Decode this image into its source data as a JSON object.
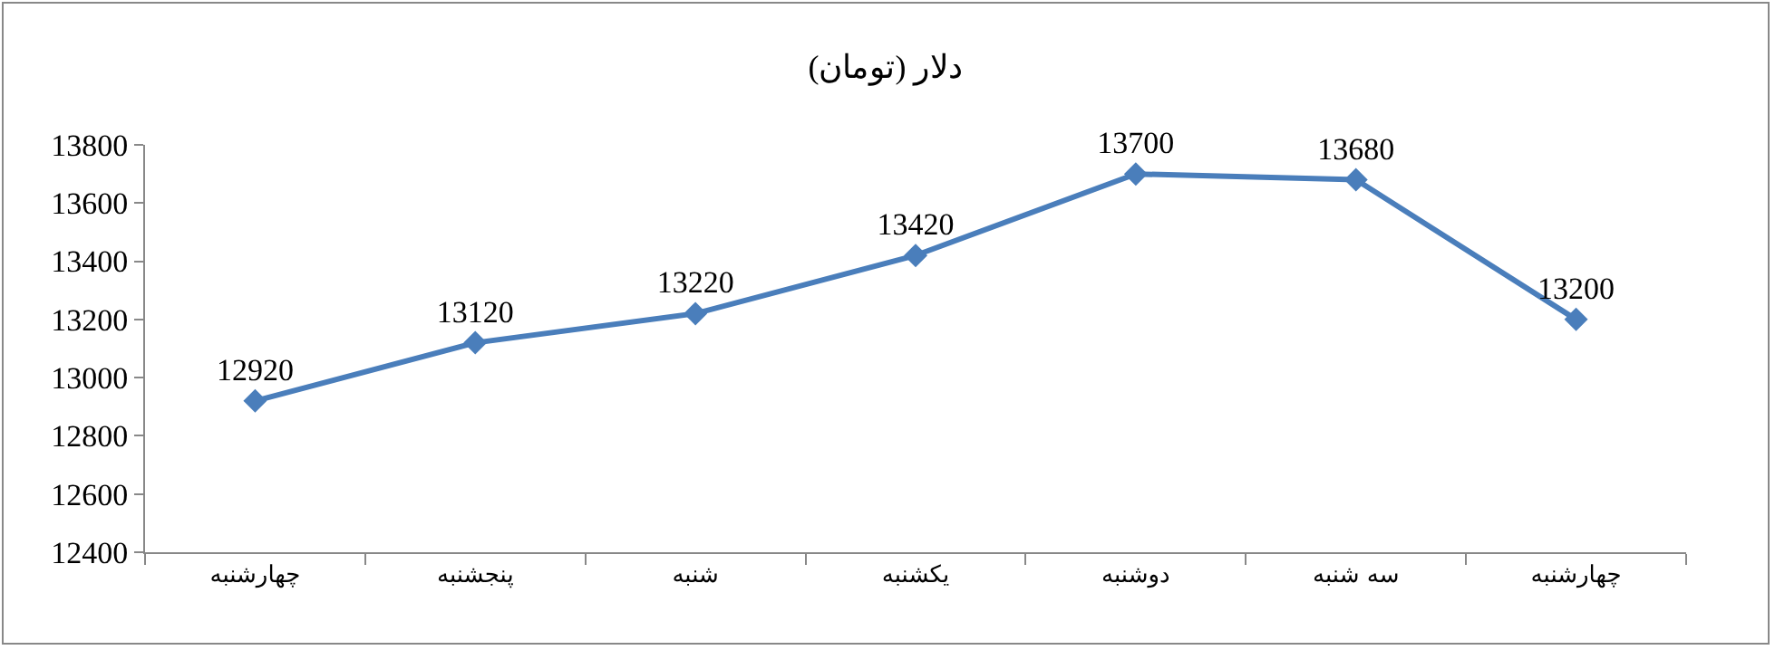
{
  "chart_data": {
    "type": "line",
    "title": "دلار (تومان)",
    "categories": [
      "چهارشنبه",
      "پنجشنبه",
      "شنبه",
      "یکشنبه",
      "دوشنبه",
      "سه شنبه",
      "چهارشنبه"
    ],
    "values": [
      12920,
      13120,
      13220,
      13420,
      13700,
      13680,
      13200
    ],
    "color": "#4a7ebb",
    "marker": "diamond",
    "line_style": "solid",
    "data_labels": true,
    "ylim": [
      12400,
      13800
    ],
    "yticks": [
      12400,
      12600,
      12800,
      13000,
      13200,
      13400,
      13600,
      13800
    ],
    "grid": false
  }
}
